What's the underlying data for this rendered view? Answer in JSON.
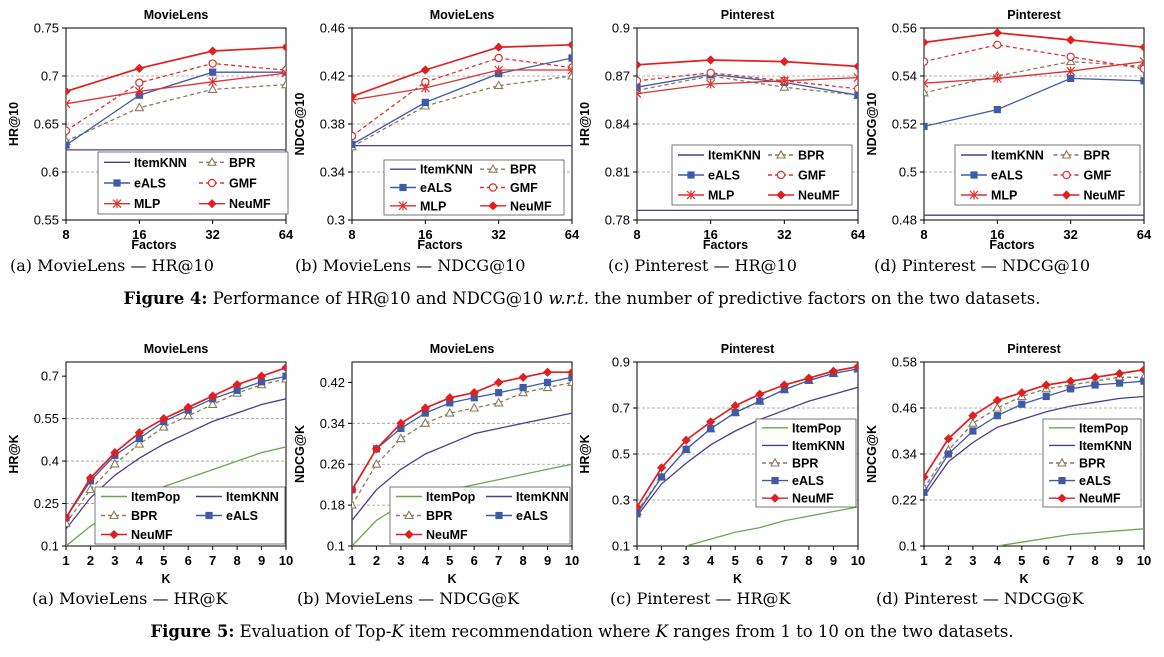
{
  "figure4": {
    "caption": {
      "prefix": "Figure 4:",
      "pre": " Performance of HR@10 and NDCG@10 ",
      "italic": "w.r.t.",
      "post": " the number of predictive factors on the two datasets."
    },
    "subcaptions": [
      "(a) MovieLens — HR@10",
      "(b) MovieLens — NDCG@10",
      "(c) Pinterest — HR@10",
      "(d) Pinterest — NDCG@10"
    ]
  },
  "figure5": {
    "caption": {
      "prefix": "Figure 5:",
      "pre": " Evaluation of Top-",
      "italic": "K",
      "post": " item recommendation where ",
      "italic2": "K",
      "post2": " ranges from 1 to 10 on the two datasets."
    },
    "subcaptions": [
      "(a) MovieLens — HR@K",
      "(b) MovieLens — NDCG@K",
      "(c) Pinterest — HR@K",
      "(d) Pinterest — NDCG@K"
    ]
  },
  "series_styles": {
    "ItemPop": {
      "color": "#6aa84f",
      "marker": "none",
      "dash": false
    },
    "ItemKNN": {
      "color": "#4b3c91",
      "marker": "none",
      "dash": false
    },
    "BPR": {
      "color": "#8c7a5a",
      "marker": "triangle",
      "dash": true
    },
    "eALS": {
      "color": "#3e5ba8",
      "marker": "square",
      "dash": false
    },
    "GMF": {
      "color": "#e03030",
      "marker": "circle",
      "dash": true
    },
    "MLP": {
      "color": "#e03030",
      "marker": "asterisk",
      "dash": false
    },
    "NeuMF": {
      "color": "#e02020",
      "marker": "diamond",
      "dash": false
    }
  },
  "chart_data": [
    {
      "type": "line",
      "title": "MovieLens",
      "xlabel": "Factors",
      "ylabel": "HR@10",
      "x": [
        8,
        16,
        32,
        64
      ],
      "x_scale": "log2",
      "ylim": [
        0.55,
        0.75
      ],
      "yticks": [
        "0.55",
        "0.6",
        "0.65",
        "0.7",
        "0.75"
      ],
      "legend_order": [
        "ItemKNN",
        "BPR",
        "eALS",
        "GMF",
        "MLP",
        "NeuMF"
      ],
      "series": [
        {
          "name": "ItemKNN",
          "values": [
            0.623,
            0.623,
            0.623,
            0.623
          ]
        },
        {
          "name": "BPR",
          "values": [
            0.632,
            0.667,
            0.686,
            0.691
          ]
        },
        {
          "name": "eALS",
          "values": [
            0.628,
            0.68,
            0.704,
            0.704
          ]
        },
        {
          "name": "GMF",
          "values": [
            0.643,
            0.693,
            0.713,
            0.706
          ]
        },
        {
          "name": "MLP",
          "values": [
            0.671,
            0.684,
            0.694,
            0.703
          ]
        },
        {
          "name": "NeuMF",
          "values": [
            0.684,
            0.708,
            0.726,
            0.73
          ]
        }
      ]
    },
    {
      "type": "line",
      "title": "MovieLens",
      "xlabel": "Factors",
      "ylabel": "NDCG@10",
      "x": [
        8,
        16,
        32,
        64
      ],
      "x_scale": "log2",
      "ylim": [
        0.3,
        0.46
      ],
      "yticks": [
        "0.3",
        "0.34",
        "0.38",
        "0.42",
        "0.46"
      ],
      "legend_order": [
        "ItemKNN",
        "BPR",
        "eALS",
        "GMF",
        "MLP",
        "NeuMF"
      ],
      "series": [
        {
          "name": "ItemKNN",
          "values": [
            0.362,
            0.362,
            0.362,
            0.362
          ]
        },
        {
          "name": "BPR",
          "values": [
            0.361,
            0.395,
            0.412,
            0.42
          ]
        },
        {
          "name": "eALS",
          "values": [
            0.363,
            0.398,
            0.422,
            0.435
          ]
        },
        {
          "name": "GMF",
          "values": [
            0.37,
            0.415,
            0.435,
            0.427
          ]
        },
        {
          "name": "MLP",
          "values": [
            0.4,
            0.41,
            0.425,
            0.425
          ]
        },
        {
          "name": "NeuMF",
          "values": [
            0.403,
            0.425,
            0.444,
            0.446
          ]
        }
      ]
    },
    {
      "type": "line",
      "title": "Pinterest",
      "xlabel": "Factors",
      "ylabel": "HR@10",
      "x": [
        8,
        16,
        32,
        64
      ],
      "x_scale": "log2",
      "ylim": [
        0.78,
        0.9
      ],
      "yticks": [
        "0.78",
        "0.81",
        "0.84",
        "0.87",
        "0.9"
      ],
      "legend_order": [
        "ItemKNN",
        "BPR",
        "eALS",
        "GMF",
        "MLP",
        "NeuMF"
      ],
      "series": [
        {
          "name": "ItemKNN",
          "values": [
            0.786,
            0.786,
            0.786,
            0.786
          ]
        },
        {
          "name": "BPR",
          "values": [
            0.861,
            0.87,
            0.863,
            0.858
          ]
        },
        {
          "name": "eALS",
          "values": [
            0.863,
            0.871,
            0.866,
            0.858
          ]
        },
        {
          "name": "GMF",
          "values": [
            0.867,
            0.872,
            0.867,
            0.862
          ]
        },
        {
          "name": "MLP",
          "values": [
            0.859,
            0.865,
            0.867,
            0.869
          ]
        },
        {
          "name": "NeuMF",
          "values": [
            0.877,
            0.88,
            0.879,
            0.876
          ]
        }
      ]
    },
    {
      "type": "line",
      "title": "Pinterest",
      "xlabel": "Factors",
      "ylabel": "NDCG@10",
      "x": [
        8,
        16,
        32,
        64
      ],
      "x_scale": "log2",
      "ylim": [
        0.48,
        0.56
      ],
      "yticks": [
        "0.48",
        "0.5",
        "0.52",
        "0.54",
        "0.56"
      ],
      "legend_order": [
        "ItemKNN",
        "BPR",
        "eALS",
        "GMF",
        "MLP",
        "NeuMF"
      ],
      "series": [
        {
          "name": "ItemKNN",
          "values": [
            0.482,
            0.482,
            0.482,
            0.482
          ]
        },
        {
          "name": "BPR",
          "values": [
            0.533,
            0.54,
            0.546,
            0.544
          ]
        },
        {
          "name": "eALS",
          "values": [
            0.519,
            0.526,
            0.539,
            0.538
          ]
        },
        {
          "name": "GMF",
          "values": [
            0.546,
            0.553,
            0.548,
            0.543
          ]
        },
        {
          "name": "MLP",
          "values": [
            0.537,
            0.539,
            0.542,
            0.546
          ]
        },
        {
          "name": "NeuMF",
          "values": [
            0.554,
            0.558,
            0.555,
            0.552
          ]
        }
      ]
    },
    {
      "type": "line",
      "title": "MovieLens",
      "xlabel": "K",
      "ylabel": "HR@K",
      "x": [
        1,
        2,
        3,
        4,
        5,
        6,
        7,
        8,
        9,
        10
      ],
      "ylim": [
        0.1,
        0.75
      ],
      "yticks": [
        "0.1",
        "0.25",
        "0.4",
        "0.55",
        "0.7"
      ],
      "legend_order": [
        "ItemPop",
        "ItemKNN",
        "BPR",
        "eALS",
        "NeuMF"
      ],
      "series": [
        {
          "name": "ItemPop",
          "values": [
            0.1,
            0.17,
            0.22,
            0.27,
            0.31,
            0.34,
            0.37,
            0.4,
            0.43,
            0.45
          ]
        },
        {
          "name": "ItemKNN",
          "values": [
            0.16,
            0.27,
            0.35,
            0.41,
            0.46,
            0.5,
            0.54,
            0.57,
            0.6,
            0.62
          ]
        },
        {
          "name": "BPR",
          "values": [
            0.18,
            0.3,
            0.39,
            0.46,
            0.52,
            0.56,
            0.6,
            0.64,
            0.67,
            0.69
          ]
        },
        {
          "name": "eALS",
          "values": [
            0.2,
            0.33,
            0.42,
            0.48,
            0.54,
            0.58,
            0.62,
            0.65,
            0.68,
            0.7
          ]
        },
        {
          "name": "NeuMF",
          "values": [
            0.2,
            0.34,
            0.43,
            0.5,
            0.55,
            0.59,
            0.63,
            0.67,
            0.7,
            0.73
          ]
        }
      ]
    },
    {
      "type": "line",
      "title": "MovieLens",
      "xlabel": "K",
      "ylabel": "NDCG@K",
      "x": [
        1,
        2,
        3,
        4,
        5,
        6,
        7,
        8,
        9,
        10
      ],
      "ylim": [
        0.1,
        0.46
      ],
      "yticks": [
        "0.1",
        "0.18",
        "0.26",
        "0.34",
        "0.42"
      ],
      "legend_order": [
        "ItemPop",
        "ItemKNN",
        "BPR",
        "eALS",
        "NeuMF"
      ],
      "series": [
        {
          "name": "ItemPop",
          "values": [
            0.1,
            0.15,
            0.18,
            0.2,
            0.21,
            0.22,
            0.23,
            0.24,
            0.25,
            0.26
          ]
        },
        {
          "name": "ItemKNN",
          "values": [
            0.15,
            0.21,
            0.25,
            0.28,
            0.3,
            0.32,
            0.33,
            0.34,
            0.35,
            0.36
          ]
        },
        {
          "name": "BPR",
          "values": [
            0.18,
            0.26,
            0.31,
            0.34,
            0.36,
            0.37,
            0.38,
            0.4,
            0.41,
            0.42
          ]
        },
        {
          "name": "eALS",
          "values": [
            0.21,
            0.29,
            0.33,
            0.36,
            0.38,
            0.39,
            0.4,
            0.41,
            0.42,
            0.43
          ]
        },
        {
          "name": "NeuMF",
          "values": [
            0.21,
            0.29,
            0.34,
            0.37,
            0.39,
            0.4,
            0.42,
            0.43,
            0.44,
            0.44
          ]
        }
      ]
    },
    {
      "type": "line",
      "title": "Pinterest",
      "xlabel": "K",
      "ylabel": "HR@K",
      "x": [
        1,
        2,
        3,
        4,
        5,
        6,
        7,
        8,
        9,
        10
      ],
      "ylim": [
        0.1,
        0.9
      ],
      "yticks": [
        "0.1",
        "0.3",
        "0.5",
        "0.7",
        "0.9"
      ],
      "legend_order": [
        "ItemPop",
        "ItemKNN",
        "BPR",
        "eALS",
        "NeuMF"
      ],
      "series": [
        {
          "name": "ItemPop",
          "values": [
            0.05,
            0.07,
            0.1,
            0.13,
            0.16,
            0.18,
            0.21,
            0.23,
            0.25,
            0.27
          ]
        },
        {
          "name": "ItemKNN",
          "values": [
            0.23,
            0.37,
            0.46,
            0.54,
            0.6,
            0.65,
            0.69,
            0.73,
            0.76,
            0.79
          ]
        },
        {
          "name": "BPR",
          "values": [
            0.25,
            0.4,
            0.52,
            0.61,
            0.68,
            0.73,
            0.78,
            0.82,
            0.85,
            0.87
          ]
        },
        {
          "name": "eALS",
          "values": [
            0.24,
            0.4,
            0.52,
            0.61,
            0.68,
            0.73,
            0.78,
            0.82,
            0.85,
            0.87
          ]
        },
        {
          "name": "NeuMF",
          "values": [
            0.27,
            0.44,
            0.56,
            0.64,
            0.71,
            0.76,
            0.8,
            0.83,
            0.86,
            0.88
          ]
        }
      ]
    },
    {
      "type": "line",
      "title": "Pinterest",
      "xlabel": "K",
      "ylabel": "NDCG@K",
      "x": [
        1,
        2,
        3,
        4,
        5,
        6,
        7,
        8,
        9,
        10
      ],
      "ylim": [
        0.1,
        0.58
      ],
      "yticks": [
        "0.1",
        "0.22",
        "0.34",
        "0.46",
        "0.58"
      ],
      "legend_order": [
        "ItemPop",
        "ItemKNN",
        "BPR",
        "eALS",
        "NeuMF"
      ],
      "series": [
        {
          "name": "ItemPop",
          "values": [
            0.05,
            0.07,
            0.08,
            0.1,
            0.11,
            0.12,
            0.13,
            0.135,
            0.14,
            0.145
          ]
        },
        {
          "name": "ItemKNN",
          "values": [
            0.23,
            0.32,
            0.37,
            0.41,
            0.43,
            0.45,
            0.465,
            0.475,
            0.485,
            0.49
          ]
        },
        {
          "name": "BPR",
          "values": [
            0.25,
            0.35,
            0.42,
            0.46,
            0.49,
            0.51,
            0.52,
            0.53,
            0.54,
            0.54
          ]
        },
        {
          "name": "eALS",
          "values": [
            0.24,
            0.34,
            0.4,
            0.44,
            0.47,
            0.49,
            0.51,
            0.52,
            0.525,
            0.53
          ]
        },
        {
          "name": "NeuMF",
          "values": [
            0.28,
            0.38,
            0.44,
            0.48,
            0.5,
            0.52,
            0.53,
            0.54,
            0.55,
            0.56
          ]
        }
      ]
    }
  ]
}
